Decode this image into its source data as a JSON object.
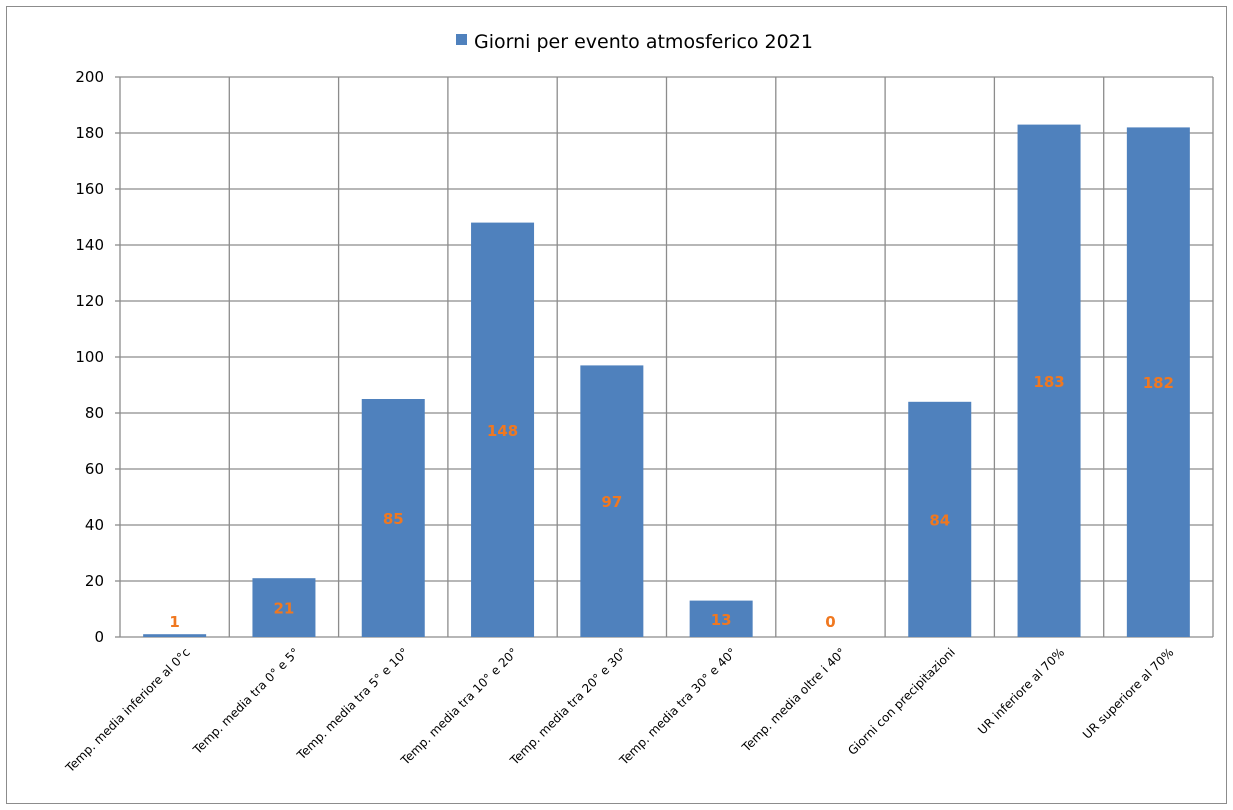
{
  "chart_data": {
    "type": "bar",
    "title": "",
    "xlabel": "",
    "ylabel": "",
    "legend": {
      "position": "top",
      "entries": [
        "Giorni per evento atmosferico 2021"
      ]
    },
    "categories": [
      "Temp. media inferiore al 0°c",
      "Temp. media tra 0° e 5°",
      "Temp. media tra 5° e 10°",
      "Temp. media tra 10° e 20°",
      "Temp. media tra 20° e 30°",
      "Temp. media tra 30° e 40°",
      "Temp. media oltre i 40°",
      "Giorni con precipitazioni",
      "UR inferiore al 70%",
      "UR superiore al 70%"
    ],
    "series": [
      {
        "name": "Giorni per evento atmosferico 2021",
        "values": [
          1,
          21,
          85,
          148,
          97,
          13,
          0,
          84,
          183,
          182
        ],
        "data_labels": [
          "1",
          "21",
          "85",
          "148",
          "97",
          "13",
          "0",
          "84",
          "183",
          "182"
        ]
      }
    ],
    "ylim": [
      0,
      200
    ],
    "yticks": [
      "0",
      "20",
      "40",
      "60",
      "80",
      "100",
      "120",
      "140",
      "160",
      "180",
      "200"
    ],
    "grid": {
      "horizontal": true,
      "vertical": true
    },
    "colors": {
      "bar": "#4f81bd",
      "data_label": "#f07820",
      "grid": "#8c8c8c"
    }
  }
}
